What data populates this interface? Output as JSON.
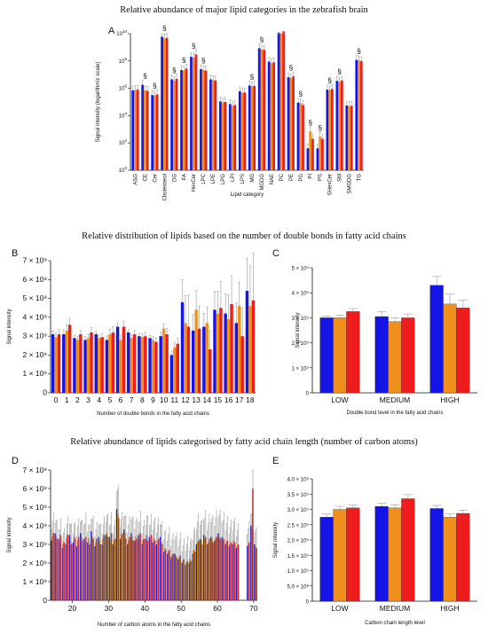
{
  "colors": {
    "blue": "#1414e6",
    "orange": "#f0901c",
    "red": "#ee1c1c",
    "error": "#999999",
    "axis": "#111111"
  },
  "titles": {
    "top": "Relative abundance of major lipid categories in the zebrafish brain",
    "middle": "Relative distribution of lipids based on the number of double bonds in fatty acid chains",
    "bottom": "Relative abundance of lipids categorised by fatty acid chain length (number of carbon atoms)"
  },
  "chart_data": [
    {
      "panel": "A",
      "type": "bar",
      "ylabel": "Signal intensity (logarithmic scale)",
      "xlabel": "Lipid category",
      "yscale": "log",
      "ylim": [
        1,
        10000000000
      ],
      "yticks": [
        [
          "10",
          "0"
        ],
        [
          "10",
          "2"
        ],
        [
          "10",
          "4"
        ],
        [
          "10",
          "6"
        ],
        [
          "10",
          "8"
        ],
        [
          "10",
          "10"
        ]
      ],
      "categories": [
        "ASG",
        "CE",
        "Cer",
        "Cholesterol",
        "DG",
        "FA",
        "HexCer",
        "LPC",
        "LPE",
        "LPG",
        "LPI",
        "LPS",
        "MG",
        "MGDG",
        "NAE",
        "PC",
        "PE",
        "PG",
        "PI",
        "PS",
        "SHexCer",
        "SM",
        "SMGDG",
        "TG"
      ],
      "series": [
        {
          "values": [
            700000,
            1800000,
            320000,
            6000000000,
            4500000,
            22000000,
            200000000,
            25000000,
            4500000,
            110000,
            70000,
            600000,
            1600000,
            850000000,
            90000000,
            12000000000,
            6500000,
            90000,
            40,
            40,
            800000,
            3500000,
            55000,
            120000000
          ]
        },
        {
          "values": [
            750000,
            700000,
            300000,
            4500000000,
            3500000,
            20000000,
            180000000,
            22000000,
            4000000,
            90000,
            50000,
            450000,
            1400000,
            700000000,
            70000000,
            10000000000,
            5500000,
            80000,
            700,
            300,
            700000,
            3000000,
            50000,
            110000000
          ]
        },
        {
          "values": [
            800000,
            650000,
            360000,
            5000000000,
            5000000,
            28000000,
            300000000,
            20000000,
            3800000,
            100000,
            60000,
            500000,
            1500000,
            650000000,
            80000000,
            15000000000,
            7500000,
            60000,
            200,
            200,
            900000,
            3800000,
            52000,
            100000000
          ]
        }
      ],
      "markers": [
        {
          "category": "CE",
          "text": "§"
        },
        {
          "category": "Cer",
          "text": "§"
        },
        {
          "category": "Cholesterol",
          "text": "§"
        },
        {
          "category": "DG",
          "text": "§"
        },
        {
          "category": "FA",
          "text": "§"
        },
        {
          "category": "HexCer",
          "text": "§"
        },
        {
          "category": "LPC",
          "text": "§"
        },
        {
          "category": "MG",
          "text": "§"
        },
        {
          "category": "MGDG",
          "text": "§"
        },
        {
          "category": "PE",
          "text": "§"
        },
        {
          "category": "PG",
          "text": "§"
        },
        {
          "category": "PI",
          "text": "§"
        },
        {
          "category": "PS",
          "text": "§"
        },
        {
          "category": "SHexCer",
          "text": "§"
        },
        {
          "category": "SM",
          "text": "§"
        },
        {
          "category": "TG",
          "text": "§"
        }
      ]
    },
    {
      "panel": "B",
      "type": "bar",
      "ylabel": "Signal intensity",
      "xlabel": "Number of double bonds in the fatty acid chains",
      "ylim": [
        0,
        7000000000
      ],
      "yticks": [
        "0",
        "1 × 10⁹",
        "2 × 10⁹",
        "3 × 10⁹",
        "4 × 10⁹",
        "5 × 10⁹",
        "6 × 10⁹",
        "7 × 10⁹"
      ],
      "categories": [
        "0",
        "1",
        "2",
        "3",
        "4",
        "5",
        "6",
        "7",
        "8",
        "9",
        "10",
        "11",
        "12",
        "13",
        "14",
        "15",
        "16",
        "17",
        "18"
      ],
      "series": [
        {
          "values": [
            3.1,
            3.1,
            2.9,
            2.8,
            3.1,
            2.8,
            3.5,
            3.2,
            3.0,
            2.9,
            3.0,
            2.0,
            4.8,
            3.3,
            3.5,
            4.4,
            4.2,
            3.7,
            5.4
          ]
        },
        {
          "values": [
            2.95,
            3.3,
            2.8,
            2.9,
            2.9,
            3.1,
            2.8,
            2.9,
            2.95,
            2.8,
            3.4,
            2.4,
            3.7,
            4.4,
            3.7,
            4.2,
            3.9,
            4.6,
            4.6
          ]
        },
        {
          "values": [
            3.1,
            3.6,
            3.1,
            3.2,
            2.95,
            3.2,
            3.5,
            3.1,
            3.0,
            2.7,
            3.1,
            2.6,
            3.5,
            3.4,
            2.3,
            4.5,
            4.7,
            3.0,
            4.9
          ]
        }
      ],
      "errors": [
        0.25,
        0.35,
        0.2,
        0.25,
        0.2,
        0.3,
        0.3,
        0.2,
        0.2,
        0.2,
        0.3,
        0.3,
        1.7,
        1.2,
        1.0,
        1.4,
        1.5,
        1.5,
        2.5
      ]
    },
    {
      "panel": "C",
      "type": "bar",
      "ylabel": "Signal intensity",
      "xlabel": "Double bond level in the fatty acid chains",
      "ylim": [
        0,
        5000000000
      ],
      "yticks": [
        "0",
        "1 × 10⁹",
        "2 × 10⁹",
        "3 × 10⁹",
        "4 × 10⁹",
        "5 × 10⁹"
      ],
      "categories": [
        "LOW",
        "MEDIUM",
        "HIGH"
      ],
      "series": [
        {
          "values": [
            3.0,
            3.05,
            4.3
          ]
        },
        {
          "values": [
            3.0,
            2.85,
            3.55
          ]
        },
        {
          "values": [
            3.25,
            3.0,
            3.4
          ]
        }
      ],
      "errors": [
        [
          0.07,
          0.2,
          0.35
        ],
        [
          0.1,
          0.15,
          0.4
        ],
        [
          0.12,
          0.15,
          0.3
        ]
      ]
    },
    {
      "panel": "D",
      "type": "bar",
      "ylabel": "Signal intensity",
      "xlabel": "Number of carbon atoms  in the fatty acid chains",
      "ylim": [
        0,
        7000000000
      ],
      "yticks": [
        "0",
        "1 × 10⁹",
        "2 × 10⁹",
        "3 × 10⁹",
        "4 × 10⁹",
        "5 × 10⁹",
        "6 × 10⁹",
        "7 × 10⁹"
      ],
      "xlim": [
        14,
        71
      ],
      "xticks": [
        "20",
        "30",
        "40",
        "50",
        "60",
        "70"
      ],
      "categories": [
        14,
        15,
        16,
        17,
        18,
        19,
        20,
        21,
        22,
        23,
        24,
        25,
        26,
        27,
        28,
        29,
        30,
        31,
        32,
        33,
        34,
        35,
        36,
        37,
        38,
        39,
        40,
        41,
        42,
        43,
        44,
        45,
        46,
        47,
        48,
        49,
        50,
        51,
        52,
        53,
        54,
        55,
        56,
        57,
        58,
        59,
        60,
        61,
        62,
        63,
        64,
        65,
        66,
        67,
        68,
        69,
        70
      ],
      "series": [
        {
          "values": [
            3.2,
            3.6,
            3.3,
            2.8,
            3.0,
            3.5,
            3.1,
            2.9,
            3.6,
            3.3,
            3.1,
            3.7,
            2.9,
            3.4,
            3.0,
            3.5,
            3.4,
            3.0,
            4.9,
            3.3,
            3.8,
            3.0,
            3.6,
            3.2,
            3.5,
            3.0,
            3.3,
            3.4,
            3.1,
            3.0,
            3.4,
            2.6,
            2.5,
            2.3,
            2.5,
            2.2,
            2.0,
            1.9,
            2.0,
            2.5,
            3.0,
            3.3,
            3.5,
            3.0,
            3.4,
            3.2,
            3.6,
            3.4,
            3.0,
            2.9,
            3.0,
            2.8,
            0,
            0,
            2.9,
            4.0,
            3.0
          ]
        },
        {
          "values": [
            3.4,
            3.5,
            3.1,
            3.0,
            3.3,
            3.2,
            3.4,
            3.2,
            3.4,
            3.1,
            3.3,
            3.4,
            3.1,
            3.2,
            3.3,
            3.6,
            3.2,
            3.2,
            4.6,
            3.5,
            3.6,
            3.2,
            3.4,
            3.4,
            3.3,
            3.2,
            3.5,
            3.2,
            3.3,
            3.2,
            3.1,
            2.8,
            2.6,
            2.4,
            2.4,
            2.3,
            2.1,
            2.0,
            2.2,
            2.7,
            3.1,
            3.2,
            3.3,
            3.1,
            3.3,
            3.3,
            3.4,
            3.2,
            3.1,
            3.0,
            3.2,
            2.9,
            0,
            0,
            3.0,
            3.8,
            2.9
          ]
        },
        {
          "values": [
            3.6,
            3.3,
            3.5,
            3.1,
            3.5,
            3.0,
            3.3,
            3.4,
            3.2,
            3.4,
            3.0,
            3.3,
            3.3,
            3.0,
            3.5,
            3.4,
            3.6,
            3.3,
            4.4,
            3.6,
            3.3,
            3.4,
            3.2,
            3.3,
            3.6,
            3.3,
            3.2,
            3.5,
            3.2,
            3.3,
            3.0,
            2.7,
            2.7,
            2.5,
            2.3,
            2.4,
            2.2,
            2.1,
            2.1,
            2.6,
            3.2,
            3.0,
            3.4,
            3.3,
            3.1,
            3.4,
            3.3,
            3.3,
            3.2,
            3.1,
            3.1,
            3.0,
            0,
            0,
            3.1,
            6.0,
            2.8
          ]
        }
      ],
      "errors": [
        1.0,
        0.9,
        0.8,
        0.7,
        0.9,
        1.0,
        0.8,
        0.9,
        1.0,
        1.2,
        0.9,
        1.1,
        0.8,
        1.0,
        0.9,
        1.1,
        1.0,
        0.9,
        1.6,
        1.0,
        1.1,
        1.0,
        1.2,
        1.0,
        1.1,
        0.9,
        1.2,
        1.0,
        1.1,
        1.0,
        1.1,
        1.0,
        1.1,
        1.0,
        1.2,
        1.1,
        1.0,
        1.2,
        1.1,
        1.2,
        1.3,
        1.2,
        1.3,
        1.2,
        1.3,
        1.3,
        1.4,
        1.3,
        1.2,
        1.1,
        1.2,
        1.0,
        0,
        0,
        1.0,
        1.0,
        1.0
      ]
    },
    {
      "panel": "E",
      "type": "bar",
      "ylabel": "Signal intensity",
      "xlabel": "Carbon chain length level",
      "ylim": [
        0,
        4000000000
      ],
      "yticks": [
        "0",
        "5.0 × 10⁸",
        "1.0 × 10⁹",
        "1.5 × 10⁹",
        "2.0 × 10⁹",
        "2.5 × 10⁹",
        "3.0 × 10⁹",
        "3.5 × 10⁹",
        "4.0 × 10⁹"
      ],
      "categories": [
        "LOW",
        "MEDIUM",
        "HIGH"
      ],
      "series": [
        {
          "values": [
            2.75,
            3.1,
            3.03
          ]
        },
        {
          "values": [
            3.0,
            3.05,
            2.75
          ]
        },
        {
          "values": [
            3.05,
            3.35,
            2.87
          ]
        }
      ],
      "errors": [
        [
          0.1,
          0.1,
          0.1
        ],
        [
          0.1,
          0.1,
          0.1
        ],
        [
          0.1,
          0.13,
          0.1
        ]
      ]
    }
  ]
}
